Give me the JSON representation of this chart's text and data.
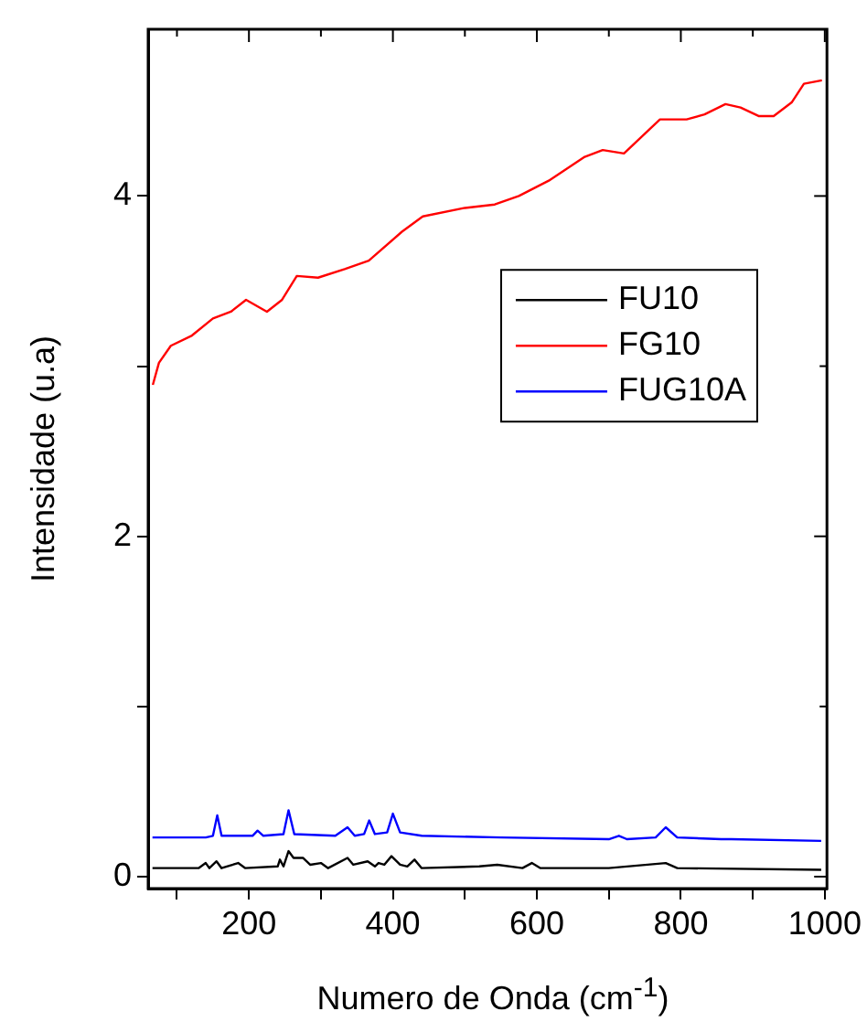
{
  "chart_data": {
    "type": "line",
    "xlabel": "Numero de Onda (cm$^{-1}$)",
    "ylabel": "Intensidade (u.a)",
    "xlim": [
      60,
      1003
    ],
    "ylim": [
      -0.07,
      4.98
    ],
    "xticks": [
      {
        "value": 100,
        "label": null
      },
      200,
      {
        "value": 300,
        "label": null
      },
      400,
      {
        "value": 500,
        "label": null
      },
      600,
      {
        "value": 700,
        "label": null
      },
      800,
      {
        "value": 900,
        "label": null
      },
      1000
    ],
    "yticks": [
      0,
      {
        "value": 1,
        "label": null
      },
      2,
      {
        "value": 3,
        "label": null
      },
      4
    ],
    "legend": "right",
    "grid": false,
    "marker": "none",
    "line_style": "solid",
    "series": [
      {
        "name": "FU10",
        "color": "#000000",
        "x": [
          66,
          130,
          140,
          145,
          155,
          162,
          185,
          195,
          240,
          243,
          248,
          255,
          262,
          275,
          285,
          300,
          310,
          337,
          345,
          365,
          375,
          380,
          388,
          398,
          410,
          420,
          430,
          440,
          520,
          545,
          580,
          593,
          605,
          700,
          779,
          795,
          995
        ],
        "values": [
          0.05,
          0.05,
          0.08,
          0.05,
          0.09,
          0.05,
          0.08,
          0.05,
          0.06,
          0.1,
          0.06,
          0.15,
          0.11,
          0.11,
          0.07,
          0.08,
          0.05,
          0.11,
          0.07,
          0.09,
          0.06,
          0.08,
          0.07,
          0.12,
          0.07,
          0.06,
          0.1,
          0.05,
          0.06,
          0.07,
          0.05,
          0.08,
          0.05,
          0.05,
          0.08,
          0.05,
          0.04
        ]
      },
      {
        "name": "FG10",
        "color": "#ff0000",
        "x": [
          66.5,
          75,
          91.5,
          120.8,
          150,
          175,
          196,
          225,
          246,
          266.5,
          296,
          333,
          366.5,
          412.5,
          441.5,
          500,
          541.5,
          575,
          616.5,
          666.5,
          691.5,
          721,
          771,
          808,
          833,
          862,
          883,
          908,
          929,
          954,
          971,
          996
        ],
        "values": [
          2.89,
          3.02,
          3.12,
          3.18,
          3.28,
          3.32,
          3.39,
          3.32,
          3.39,
          3.53,
          3.52,
          3.57,
          3.62,
          3.79,
          3.88,
          3.93,
          3.95,
          4.0,
          4.09,
          4.23,
          4.27,
          4.25,
          4.45,
          4.45,
          4.48,
          4.54,
          4.52,
          4.47,
          4.47,
          4.55,
          4.66,
          4.68
        ]
      },
      {
        "name": "FUG10A",
        "color": "#0000ff",
        "x": [
          66,
          140,
          150,
          156,
          162,
          205,
          212,
          220,
          248,
          255,
          263,
          320,
          337,
          347,
          360,
          367,
          375,
          392,
          400,
          410,
          440,
          550,
          700,
          714,
          725,
          765,
          779,
          795,
          856,
          870,
          995
        ],
        "values": [
          0.23,
          0.23,
          0.24,
          0.36,
          0.24,
          0.24,
          0.27,
          0.24,
          0.25,
          0.39,
          0.25,
          0.24,
          0.29,
          0.24,
          0.25,
          0.33,
          0.25,
          0.26,
          0.37,
          0.26,
          0.24,
          0.23,
          0.22,
          0.24,
          0.22,
          0.23,
          0.29,
          0.23,
          0.22,
          0.22,
          0.21
        ]
      }
    ]
  }
}
